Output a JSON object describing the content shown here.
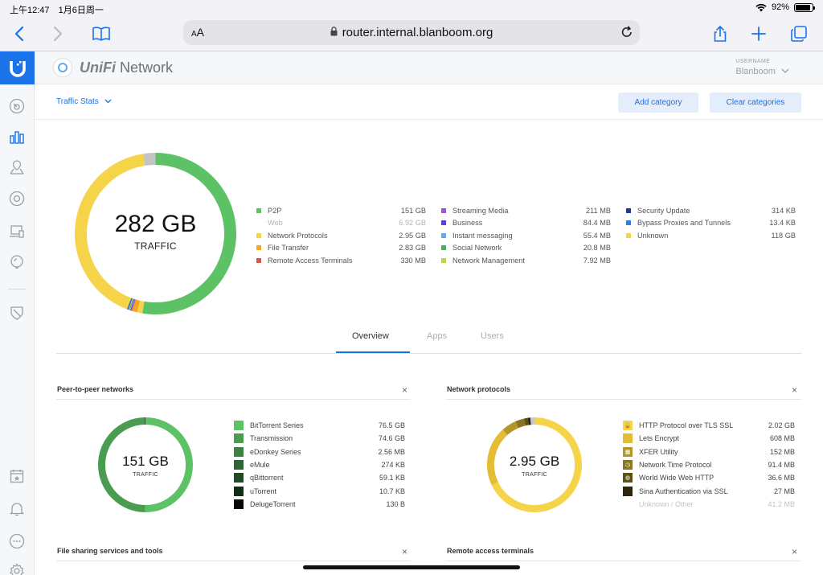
{
  "status_bar": {
    "time": "上午12:47",
    "date": "1月6日周一",
    "battery": "92%"
  },
  "browser": {
    "aa_label": "A",
    "aa_small": "A",
    "url": "router.internal.blanboom.org"
  },
  "header": {
    "brand_strong": "UniFi",
    "brand_rest": " Network",
    "username_label": "USERNAME",
    "username": "Blanboom"
  },
  "subheader": {
    "selector": "Traffic Stats",
    "add_category": "Add category",
    "clear_categories": "Clear categories"
  },
  "overview": {
    "total": "282 GB",
    "total_label": "TRAFFIC"
  },
  "tabs": [
    "Overview",
    "Apps",
    "Users"
  ],
  "cards": [
    {
      "title": "Peer-to-peer networks",
      "close": "×",
      "total": "151 GB",
      "total_label": "TRAFFIC"
    },
    {
      "title": "Network protocols",
      "close": "×",
      "total": "2.95 GB",
      "total_label": "TRAFFIC"
    },
    {
      "title": "File sharing services and tools",
      "close": "×"
    },
    {
      "title": "Remote access terminals",
      "close": "×"
    }
  ],
  "colors": {
    "accent": "#1a73e8",
    "p2p": "#5cc265",
    "protocols": "#f6d44a",
    "unknown": "#f6d44a"
  },
  "chart_data": [
    {
      "type": "pie",
      "total": "282 GB",
      "categories": [
        {
          "name": "P2P",
          "value": "151 GB",
          "gb": 151,
          "color": "#5cc265"
        },
        {
          "name": "Web",
          "value": "6.92 GB",
          "gb": 6.92,
          "color": "#c4c4c4",
          "muted": true
        },
        {
          "name": "Network Protocols",
          "value": "2.95 GB",
          "gb": 2.95,
          "color": "#f6d44a"
        },
        {
          "name": "File Transfer",
          "value": "2.83 GB",
          "gb": 2.83,
          "color": "#f5a623"
        },
        {
          "name": "Remote Access Terminals",
          "value": "330 MB",
          "gb": 0.33,
          "color": "#d9534f"
        },
        {
          "name": "Streaming Media",
          "value": "211 MB",
          "gb": 0.211,
          "color": "#9b59d0"
        },
        {
          "name": "Business",
          "value": "84.4 MB",
          "gb": 0.0844,
          "color": "#5b3fd6"
        },
        {
          "name": "Instant messaging",
          "value": "55.4 MB",
          "gb": 0.0554,
          "color": "#6aa7f0"
        },
        {
          "name": "Social Network",
          "value": "20.8 MB",
          "gb": 0.0208,
          "color": "#4cae56"
        },
        {
          "name": "Network Management",
          "value": "7.92 MB",
          "gb": 0.00792,
          "color": "#b9d84a"
        },
        {
          "name": "Security Update",
          "value": "314 KB",
          "gb": 0.000314,
          "color": "#1f3a8a"
        },
        {
          "name": "Bypass Proxies and Tunnels",
          "value": "13.4 KB",
          "gb": 1.34e-05,
          "color": "#2e7cf0"
        },
        {
          "name": "Unknown",
          "value": "118 GB",
          "gb": 118,
          "color": "#f6d44a"
        }
      ]
    },
    {
      "type": "pie",
      "total": "151 GB",
      "categories": [
        {
          "name": "BitTorrent Series",
          "value": "76.5 GB",
          "gb": 76.5,
          "color": "#5cc265"
        },
        {
          "name": "Transmission",
          "value": "74.6 GB",
          "gb": 74.6,
          "color": "#4a9d50"
        },
        {
          "name": "eDonkey Series",
          "value": "2.56 MB",
          "gb": 0.00256,
          "color": "#3d8242"
        },
        {
          "name": "eMule",
          "value": "274 KB",
          "gb": 0.000274,
          "color": "#2f6534"
        },
        {
          "name": "qBittorrent",
          "value": "59.1 KB",
          "gb": 5.91e-05,
          "color": "#224a26"
        },
        {
          "name": "uTorrent",
          "value": "10.7 KB",
          "gb": 1.07e-05,
          "color": "#142d17"
        },
        {
          "name": "DelugeTorrent",
          "value": "130 B",
          "gb": 1.3e-07,
          "color": "#050805"
        }
      ]
    },
    {
      "type": "pie",
      "total": "2.95 GB",
      "categories": [
        {
          "name": "HTTP Protocol over TLS SSL",
          "value": "2.02 GB",
          "gb": 2.02,
          "color": "#f6d44a",
          "icon": "lock-icon"
        },
        {
          "name": "Lets Encrypt",
          "value": "608 MB",
          "gb": 0.608,
          "color": "#e3bd35"
        },
        {
          "name": "XFER Utility",
          "value": "152 MB",
          "gb": 0.152,
          "color": "#b59728",
          "icon": "squares-icon"
        },
        {
          "name": "Network Time Protocol",
          "value": "91.4 MB",
          "gb": 0.0914,
          "color": "#8c7520",
          "icon": "clock-icon"
        },
        {
          "name": "World Wide Web HTTP",
          "value": "36.6 MB",
          "gb": 0.0366,
          "color": "#5e4f16",
          "icon": "globe-icon"
        },
        {
          "name": "Sina Authentication via SSL",
          "value": "27 MB",
          "gb": 0.027,
          "color": "#2e270c"
        },
        {
          "name": "Unknown / Other",
          "value": "41.2 MB",
          "gb": 0.0412,
          "color": "#c8c8c8",
          "muted": true
        }
      ]
    }
  ]
}
